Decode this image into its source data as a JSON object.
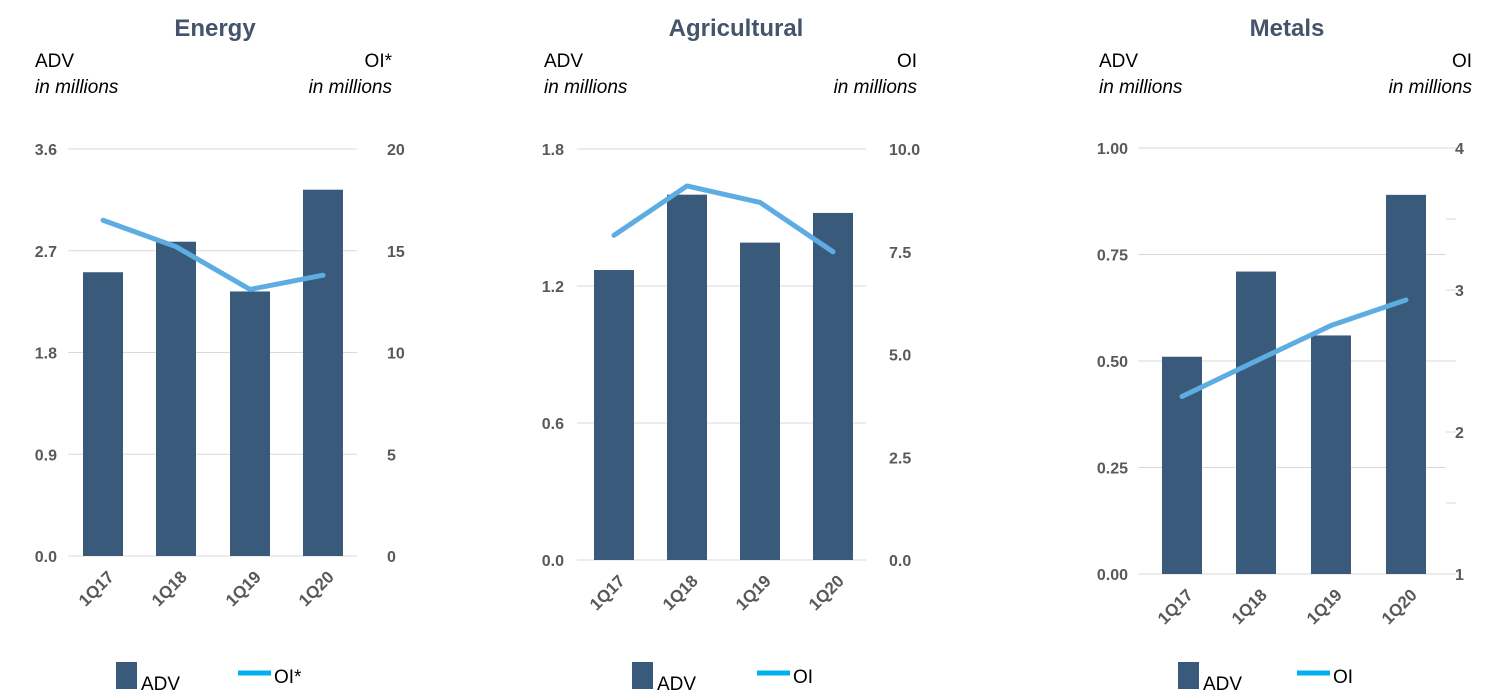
{
  "colors": {
    "bar": "#3a5a7c",
    "line": "#5dade2",
    "legend_line": "#00b0f0",
    "title": "#44546a",
    "tick": "#595959"
  },
  "chart_data": [
    {
      "type": "bar",
      "title": "Energy",
      "left_axis_label": "ADV",
      "left_axis_unit": "in millions",
      "right_axis_label": "OI*",
      "right_axis_unit": "in millions",
      "categories": [
        "1Q17",
        "1Q18",
        "1Q19",
        "1Q20"
      ],
      "left_ticks": [
        "0.0",
        "0.9",
        "1.8",
        "2.7",
        "3.6"
      ],
      "right_ticks": [
        "0",
        "5",
        "10",
        "15",
        "20"
      ],
      "ylim": [
        0,
        3.6
      ],
      "y2lim": [
        0,
        20
      ],
      "grid": true,
      "legend_position": "bottom",
      "series": [
        {
          "name": "ADV",
          "type": "bar",
          "axis": "left",
          "values": [
            2.51,
            2.78,
            2.34,
            3.24
          ]
        },
        {
          "name": "OI*",
          "type": "line",
          "axis": "right",
          "values": [
            16.5,
            15.2,
            13.1,
            13.8
          ]
        }
      ]
    },
    {
      "type": "bar",
      "title": "Agricultural",
      "left_axis_label": "ADV",
      "left_axis_unit": "in millions",
      "right_axis_label": "OI",
      "right_axis_unit": "in millions",
      "categories": [
        "1Q17",
        "1Q18",
        "1Q19",
        "1Q20"
      ],
      "left_ticks": [
        "0.0",
        "0.6",
        "1.2",
        "1.8"
      ],
      "right_ticks": [
        "0.0",
        "2.5",
        "5.0",
        "7.5",
        "10.0"
      ],
      "ylim": [
        0,
        1.8
      ],
      "y2lim": [
        0,
        10
      ],
      "grid": true,
      "legend_position": "bottom",
      "series": [
        {
          "name": "ADV",
          "type": "bar",
          "axis": "left",
          "values": [
            1.27,
            1.6,
            1.39,
            1.52
          ]
        },
        {
          "name": "OI",
          "type": "line",
          "axis": "right",
          "values": [
            7.9,
            9.1,
            8.7,
            7.5
          ]
        }
      ]
    },
    {
      "type": "bar",
      "title": "Metals",
      "left_axis_label": "ADV",
      "left_axis_unit": "in millions",
      "right_axis_label": "OI",
      "right_axis_unit": "in millions",
      "categories": [
        "1Q17",
        "1Q18",
        "1Q19",
        "1Q20"
      ],
      "left_ticks": [
        "0.00",
        "0.25",
        "0.50",
        "0.75",
        "1.00"
      ],
      "right_ticks": [
        "1",
        "2",
        "3",
        "4"
      ],
      "ylim": [
        0,
        1.0
      ],
      "y2lim": [
        1,
        4
      ],
      "grid": true,
      "legend_position": "bottom",
      "series": [
        {
          "name": "ADV",
          "type": "bar",
          "axis": "left",
          "values": [
            0.51,
            0.71,
            0.56,
            0.89
          ]
        },
        {
          "name": "OI",
          "type": "line",
          "axis": "right",
          "values": [
            2.25,
            2.5,
            2.75,
            2.93
          ]
        }
      ]
    }
  ]
}
